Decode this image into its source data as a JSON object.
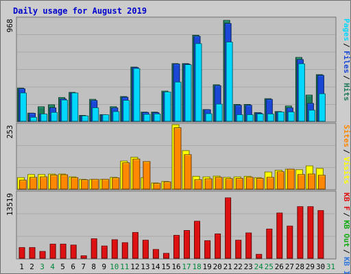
{
  "chart_data": {
    "type": "bar",
    "title": "Daily usage for August 2019",
    "categories": [
      "1",
      "2",
      "3",
      "4",
      "5",
      "6",
      "7",
      "8",
      "9",
      "10",
      "11",
      "12",
      "13",
      "14",
      "15",
      "16",
      "17",
      "18",
      "19",
      "20",
      "21",
      "22",
      "23",
      "24",
      "25",
      "26",
      "27",
      "28",
      "29",
      "30",
      "31"
    ],
    "weekend_days": [
      "3",
      "4",
      "10",
      "11",
      "17",
      "18",
      "24",
      "25",
      "31"
    ],
    "panels": [
      {
        "name": "hits",
        "ymax": 968,
        "ymax_label": "968",
        "legend": [
          "Pages",
          "Files",
          "Hits"
        ],
        "series": [
          {
            "name": "Hits",
            "color": "#1f7a5a",
            "values": [
              312,
              76,
              136,
              155,
              223,
              272,
              55,
              206,
              62,
              137,
              232,
              510,
              86,
              86,
              283,
              543,
              543,
              810,
              110,
              343,
              950,
              158,
              158,
              81,
              212,
              91,
              143,
              601,
              246,
              439,
              0
            ]
          },
          {
            "name": "Files",
            "color": "#1a47d6",
            "values": [
              305,
              74,
              68,
              125,
              210,
              265,
              50,
              195,
              60,
              125,
              225,
              505,
              82,
              80,
              274,
              538,
              538,
              800,
              108,
              335,
              920,
              150,
              150,
              76,
              205,
              86,
              125,
              580,
              168,
              432,
              0
            ]
          },
          {
            "name": "Pages",
            "color": "#00d8ff",
            "values": [
              265,
              36,
              68,
              82,
              198,
              265,
              50,
              126,
              60,
              90,
              195,
              495,
              64,
              68,
              275,
              368,
              532,
              730,
              70,
              160,
              745,
              60,
              60,
              68,
              68,
              86,
              86,
              540,
              103,
              258,
              0
            ]
          }
        ]
      },
      {
        "name": "visits",
        "ymax": 253,
        "ymax_label": "253",
        "legend": [
          "Sites",
          "Visits"
        ],
        "series": [
          {
            "name": "Visits",
            "color": "#ffff00",
            "values": [
              45,
              57,
              57,
              59,
              59,
              48,
              38,
              38,
              38,
              46,
              110,
              125,
              45,
              24,
              30,
              253,
              151,
              50,
              48,
              51,
              46,
              48,
              50,
              45,
              67,
              74,
              78,
              76,
              91,
              81,
              0
            ]
          },
          {
            "name": "Sites",
            "color": "#ff8800",
            "values": [
              35,
              46,
              48,
              55,
              56,
              45,
              36,
              38,
              38,
              44,
              103,
              118,
              108,
              22,
              28,
              241,
              135,
              37,
              40,
              46,
              41,
              42,
              46,
              42,
              46,
              68,
              78,
              57,
              59,
              54,
              0
            ]
          }
        ]
      },
      {
        "name": "kbytes",
        "ymax": 13519,
        "ymax_label": "13519",
        "legend": [
          "KB F",
          "KB Out",
          "KB In"
        ],
        "series": [
          {
            "name": "KB F",
            "color": "#dd1111",
            "values": [
              2200,
              2200,
              1400,
              2900,
              2900,
              2700,
              500,
              4000,
              2500,
              3800,
              3200,
              5300,
              3700,
              1800,
              1000,
              4700,
              5700,
              7600,
              3600,
              5000,
              12400,
              3700,
              5200,
              800,
              6000,
              9300,
              6600,
              10600,
              10600,
              9800,
              0
            ]
          }
        ]
      }
    ]
  }
}
